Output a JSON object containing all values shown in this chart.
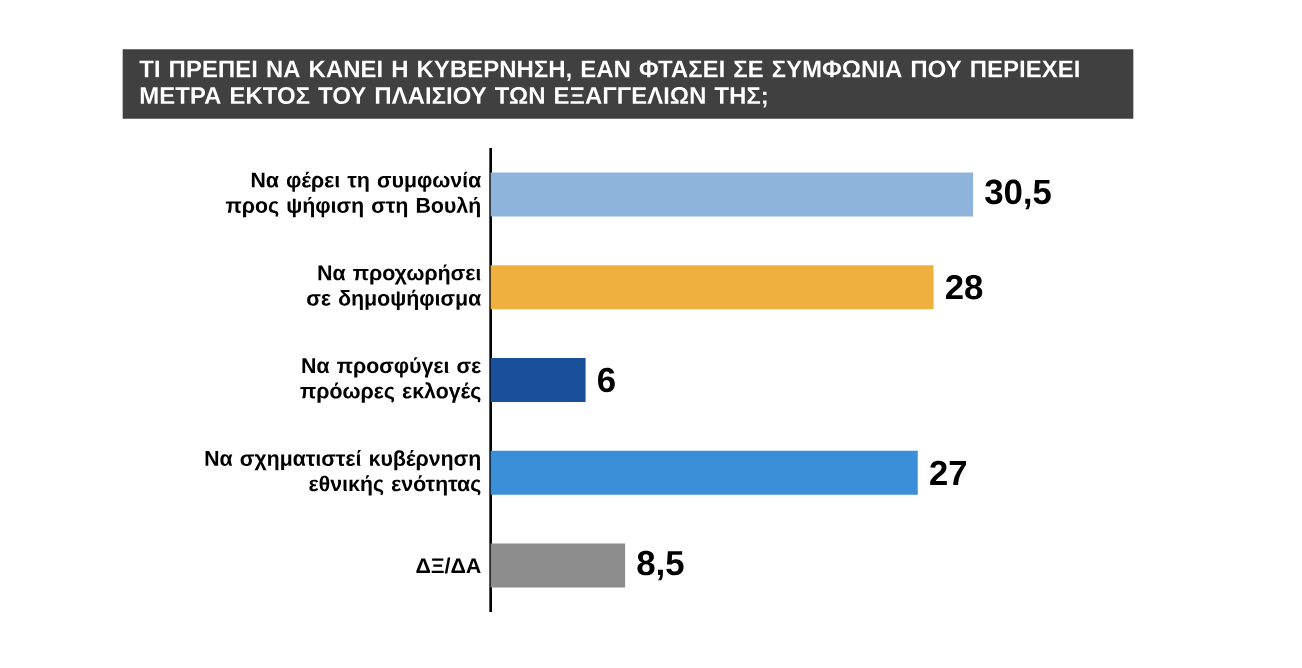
{
  "chart_data": {
    "type": "bar",
    "orientation": "horizontal",
    "title": "ΤΙ ΠΡΕΠΕΙ ΝΑ ΚΑΝΕΙ Η ΚΥΒΕΡΝΗΣΗ, ΕΑΝ ΦΤΑΣΕΙ ΣΕ ΣΥΜΦΩΝΙΑ ΠΟΥ ΠΕΡΙΕΧΕΙ ΜΕΤΡΑ ΕΚΤΟΣ ΤΟΥ ΠΛΑΙΣΙΟΥ ΤΩΝ ΕΞΑΓΓΕΛΙΩΝ ΤΗΣ;",
    "categories": [
      "Να φέρει τη συμφωνία προς ψήφιση στη Βουλή",
      "Να προχωρήσει σε δημοψήφισμα",
      "Να προσφύγει σε πρόωρες εκλογές",
      "Να σχηματιστεί κυβέρνηση εθνικής ενότητας",
      "ΔΞ/ΔΑ"
    ],
    "values": [
      30.5,
      28,
      6,
      27,
      8.5
    ],
    "value_labels": [
      "30,5",
      "28",
      "6",
      "27",
      "8,5"
    ],
    "colors": [
      "#8fb4dc",
      "#f0b040",
      "#1a4f9c",
      "#3a8fd8",
      "#8c8c8c"
    ]
  }
}
